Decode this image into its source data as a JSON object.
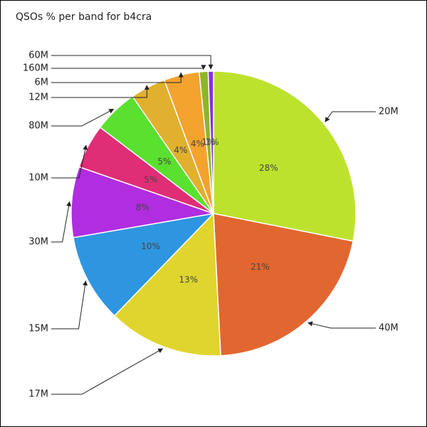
{
  "chart_data": {
    "type": "pie",
    "title": "QSOs % per band for b4cra",
    "categories": [
      "20M",
      "40M",
      "17M",
      "15M",
      "30M",
      "10M",
      "80M",
      "12M",
      "6M",
      "160M",
      "60M"
    ],
    "values": [
      28,
      21,
      13,
      10,
      8,
      5,
      5,
      4,
      4,
      1,
      0.6
    ],
    "value_labels": [
      "28%",
      "21%",
      "13%",
      "10%",
      "8%",
      "5%",
      "5%",
      "4%",
      "4%",
      "1%",
      "1%"
    ],
    "colors": [
      "#bde22e",
      "#e2662f",
      "#e0d52e",
      "#2e96e0",
      "#b02ee0",
      "#e02e76",
      "#5ae02e",
      "#e0b02e",
      "#f3a32e",
      "#8fb52e",
      "#8a2ee0"
    ]
  }
}
